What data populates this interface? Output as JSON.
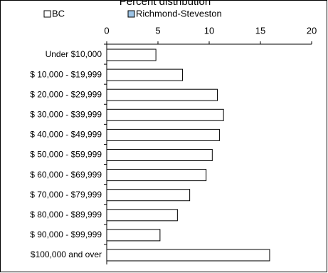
{
  "chart_data": {
    "type": "hbar",
    "title": "Percent distribution",
    "categories": [
      "Under $10,000",
      "$ 10,000 - $19,999",
      "$ 20,000 - $29,999",
      "$ 30,000 - $39,999",
      "$ 40,000 - $49,999",
      "$ 50,000 - $59,999",
      "$ 60,000 - $69,999",
      "$ 70,000 - $79,999",
      "$ 80,000 - $89,999",
      "$ 90,000 - $99,999",
      "$100,000 and over"
    ],
    "series": [
      {
        "name": "BC",
        "color": "#ffffff",
        "values": [
          4.8,
          7.4,
          10.8,
          11.4,
          11.0,
          10.3,
          9.7,
          8.1,
          6.9,
          5.2,
          15.9
        ]
      },
      {
        "name": "Richmond-Steveston",
        "color": "#9cc3e5",
        "values": [
          null,
          null,
          null,
          null,
          null,
          null,
          null,
          null,
          null,
          null,
          null
        ]
      }
    ],
    "xlim": [
      0,
      20
    ],
    "xticks": [
      0,
      5,
      10,
      15,
      20
    ]
  }
}
